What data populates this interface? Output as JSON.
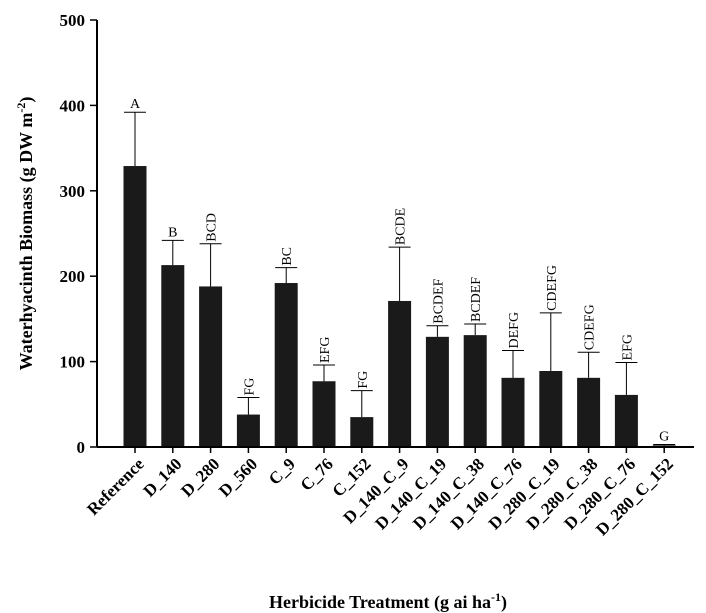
{
  "chart_data": {
    "type": "bar",
    "xlabel": {
      "main": "Herbicide Treatment (g ai ha",
      "sup": "-1",
      "end": ")"
    },
    "ylabel": {
      "main": "Waterhyacinth Biomass (g DW m",
      "sup": "-2",
      "end": ")"
    },
    "ylim": [
      0,
      500
    ],
    "yticks": [
      0,
      100,
      200,
      300,
      400,
      500
    ],
    "categories": [
      "Reference",
      "D_140",
      "D_280",
      "D_560",
      "C_9",
      "C_76",
      "C_152",
      "D_140_C_9",
      "D_140_C_19",
      "D_140_C_38",
      "D_140_C_76",
      "D_280_C_19",
      "D_280_C_38",
      "D_280_C_76",
      "D_280_C_152"
    ],
    "values": [
      329,
      213,
      188,
      38,
      192,
      77,
      35,
      171,
      129,
      131,
      81,
      89,
      81,
      61,
      2
    ],
    "errors": [
      63,
      29,
      50,
      20,
      18,
      19,
      31,
      63,
      13,
      13,
      32,
      68,
      30,
      38,
      1
    ],
    "groups": [
      "A",
      "B",
      "BCD",
      "FG",
      "BC",
      "EFG",
      "FG",
      "BCDE",
      "BCDEF",
      "BCDEF",
      "DEFG",
      "CDEFG",
      "CDEFG",
      "EFG",
      "G"
    ],
    "grid": false,
    "bar_color": "#1a1a1a"
  }
}
